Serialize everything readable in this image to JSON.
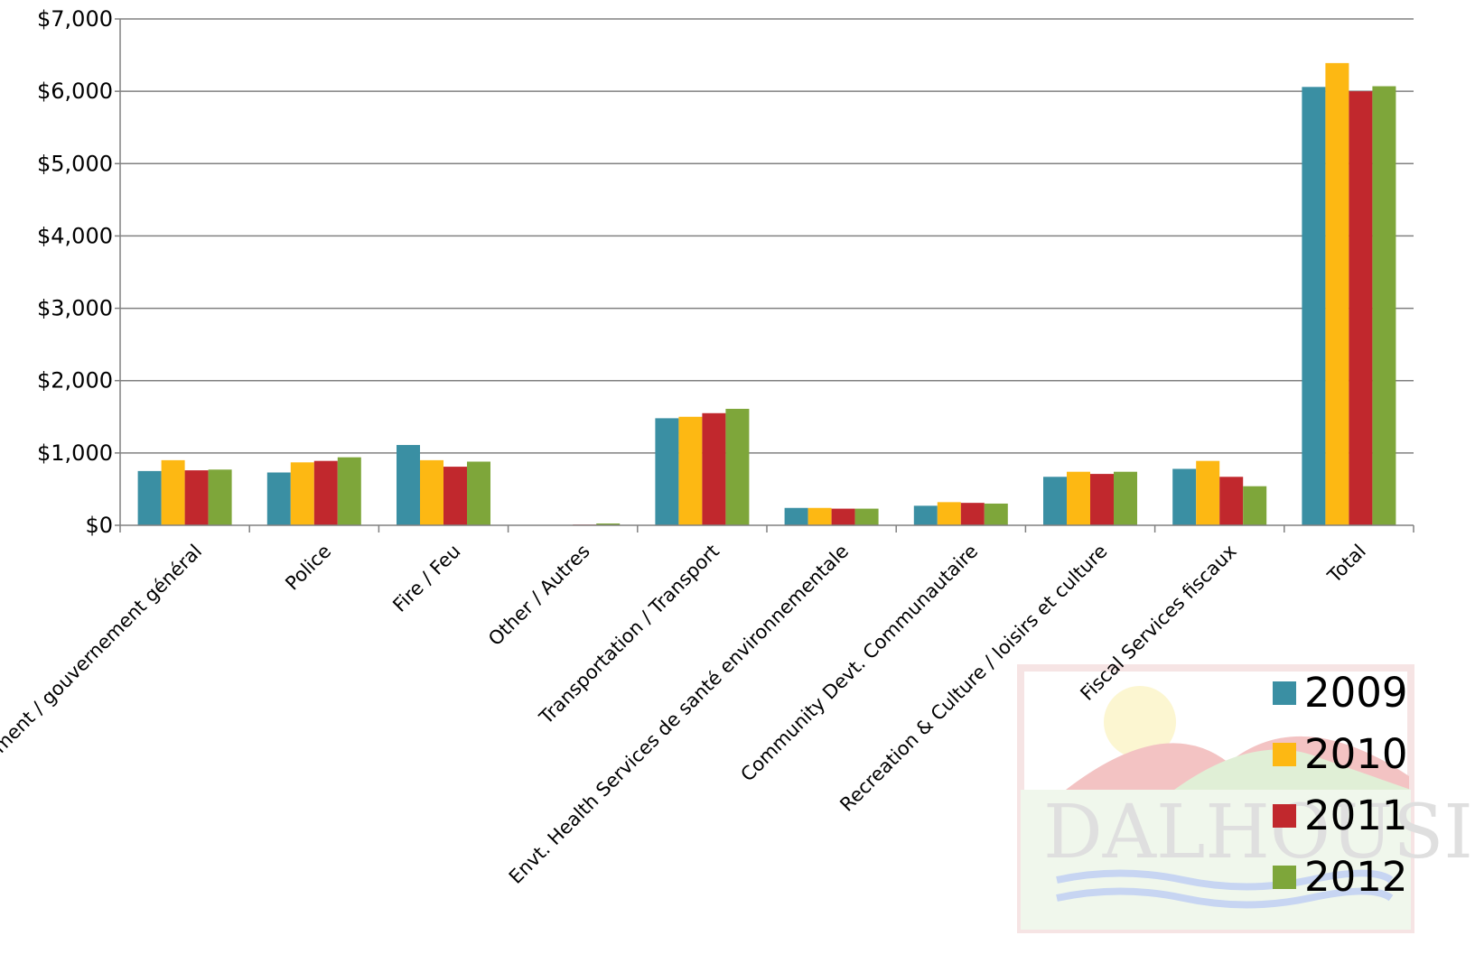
{
  "colors": {
    "2009": "#3a8fa3",
    "2010": "#fdb813",
    "2011": "#c1282d",
    "2012": "#7ea63a",
    "grid": "#808080"
  },
  "chart_data": {
    "type": "bar",
    "ylim": [
      0,
      7000
    ],
    "y_ticks": [
      "$0",
      "$1,000",
      "$2,000",
      "$3,000",
      "$4,000",
      "$5,000",
      "$6,000",
      "$7,000"
    ],
    "categories": [
      "General Government / gouvernement général",
      "Police",
      "Fire / Feu",
      "Other / Autres",
      "Transportation / Transport",
      "Envt. Health Services de santé environnementale",
      "Community Devt. Communautaire",
      "Recreation & Culture / loisirs et culture",
      "Fiscal Services fiscaux",
      "Total"
    ],
    "series": [
      {
        "name": "2009",
        "values": [
          750,
          730,
          1110,
          0,
          1480,
          240,
          270,
          670,
          780,
          6060
        ]
      },
      {
        "name": "2010",
        "values": [
          900,
          870,
          900,
          0,
          1500,
          240,
          320,
          740,
          890,
          6390
        ]
      },
      {
        "name": "2011",
        "values": [
          760,
          890,
          810,
          10,
          1550,
          230,
          310,
          710,
          670,
          6000
        ]
      },
      {
        "name": "2012",
        "values": [
          770,
          940,
          880,
          25,
          1610,
          230,
          300,
          740,
          540,
          6070
        ]
      }
    ],
    "grid": true,
    "legend_position": "bottom-right",
    "watermark": "DALHOUSIE"
  }
}
